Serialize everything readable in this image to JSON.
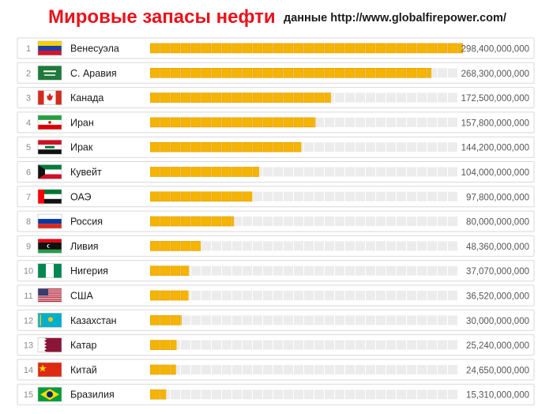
{
  "header": {
    "title": "Мировые запасы нефти",
    "subtitle": "данные http://www.globalfirepower.com/"
  },
  "colors": {
    "bar_fill": "#f4b400",
    "bar_edge": "#e39b00",
    "track": "#ececec",
    "row_border": "#d9d9d9",
    "rank_text": "#8a8a8a",
    "country_text": "#1a1a1a",
    "value_text": "#555555"
  },
  "chart_data": {
    "type": "bar",
    "orientation": "horizontal",
    "title": "Мировые запасы нефти",
    "grid": false,
    "legend": "none",
    "xlim": [
      0,
      298400000000
    ],
    "ranks": [
      "1",
      "2",
      "3",
      "4",
      "5",
      "6",
      "7",
      "8",
      "9",
      "10",
      "11",
      "12",
      "13",
      "14",
      "15"
    ],
    "categories": [
      "Венесуэла",
      "С. Аравия",
      "Канада",
      "Иран",
      "Ирак",
      "Кувейт",
      "ОАЭ",
      "Россия",
      "Ливия",
      "Нигерия",
      "США",
      "Казахстан",
      "Катар",
      "Китай",
      "Бразилия"
    ],
    "values": [
      298400000000,
      268300000000,
      172500000000,
      157800000000,
      144200000000,
      104000000000,
      97800000000,
      80000000000,
      48360000000,
      37070000000,
      36520000000,
      30000000000,
      25240000000,
      24650000000,
      15310000000
    ],
    "value_labels": [
      "298,400,000,000",
      "268,300,000,000",
      "172,500,000,000",
      "157,800,000,000",
      "144,200,000,000",
      "104,000,000,000",
      "97,800,000,000",
      "80,000,000,000",
      "48,360,000,000",
      "37,070,000,000",
      "36,520,000,000",
      "30,000,000,000",
      "25,240,000,000",
      "24,650,000,000",
      "15,310,000,000"
    ],
    "flag_icons": [
      "venezuela-flag-icon",
      "saudi-arabia-flag-icon",
      "canada-flag-icon",
      "iran-flag-icon",
      "iraq-flag-icon",
      "kuwait-flag-icon",
      "uae-flag-icon",
      "russia-flag-icon",
      "libya-flag-icon",
      "nigeria-flag-icon",
      "usa-flag-icon",
      "kazakhstan-flag-icon",
      "qatar-flag-icon",
      "china-flag-icon",
      "brazil-flag-icon"
    ]
  }
}
